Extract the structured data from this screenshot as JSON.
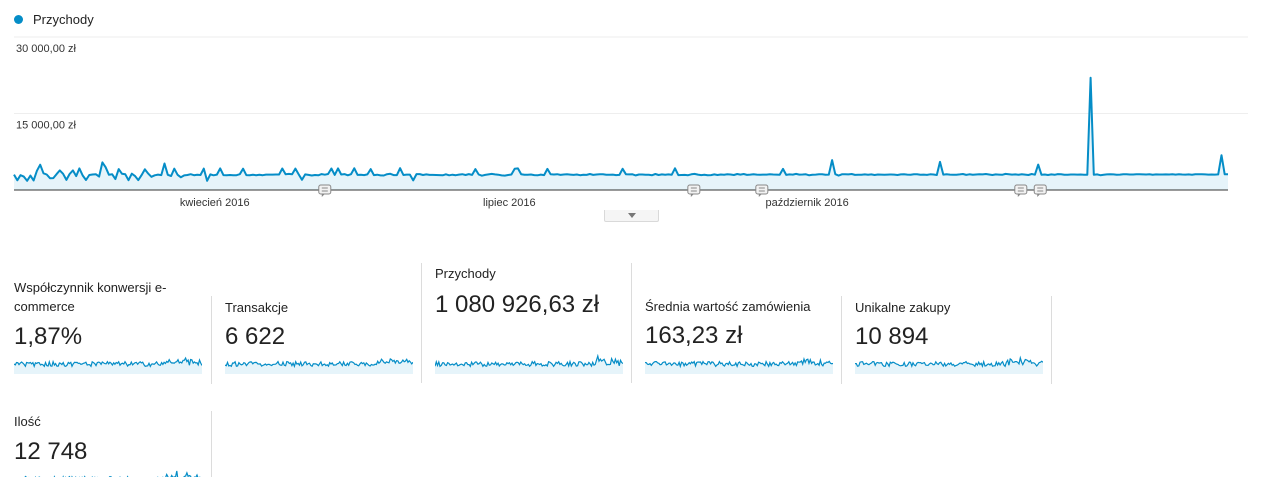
{
  "legend": {
    "label": "Przychody",
    "color": "#058dc7"
  },
  "chart_data": {
    "type": "area",
    "series": [
      {
        "name": "Przychody",
        "color": "#058dc7"
      }
    ],
    "y_ticks": [
      "30 000,00 zł",
      "15 000,00 zł"
    ],
    "ylim": [
      0,
      30000
    ],
    "x_tick_labels": [
      "kwiecień 2016",
      "lipiec 2016",
      "październik 2016"
    ],
    "x_tick_days": [
      62,
      153,
      245
    ],
    "days": 375,
    "annotation_days": [
      96,
      210,
      231,
      311,
      317
    ],
    "values": [
      3010,
      1902,
      2908,
      2622,
      1812,
      2823,
      1866,
      3766,
      4952,
      3283,
      3031,
      2305,
      2342,
      3099,
      3838,
      3180,
      1975,
      3130,
      3840,
      2719,
      4226,
      2843,
      1964,
      2944,
      3031,
      3102,
      2620,
      5408,
      4466,
      3002,
      3087,
      2140,
      4094,
      3185,
      3079,
      1918,
      3197,
      2731,
      1935,
      2913,
      4058,
      3217,
      2592,
      2878,
      3029,
      2929,
      5187,
      2977,
      2751,
      4180,
      2978,
      2497,
      2869,
      2938,
      3091,
      2905,
      3004,
      2934,
      4195,
      1811,
      3051,
      2889,
      3014,
      4245,
      2916,
      2898,
      2935,
      2904,
      2909,
      3102,
      4170,
      2926,
      2906,
      3003,
      2895,
      3009,
      2905,
      3029,
      3012,
      3024,
      3043,
      3044,
      4211,
      3104,
      3152,
      3082,
      4205,
      3056,
      2006,
      3058,
      2964,
      2837,
      2936,
      2890,
      3123,
      3004,
      3131,
      4209,
      2954,
      4245,
      3047,
      3122,
      2876,
      3101,
      4260,
      2963,
      2977,
      2919,
      3067,
      4089,
      2927,
      3001,
      2859,
      2844,
      3096,
      3181,
      2925,
      2922,
      4277,
      2933,
      3024,
      3014,
      1873,
      3125,
      3117,
      2947,
      3050,
      2960,
      2966,
      2941,
      2931,
      2880,
      3087,
      2881,
      3004,
      2908,
      3021,
      3103,
      2944,
      3109,
      2958,
      4107,
      3033,
      2807,
      2963,
      3053,
      3153,
      3065,
      2998,
      2870,
      2824,
      2949,
      3043,
      4181,
      4243,
      3083,
      2986,
      3001,
      3039,
      2923,
      2882,
      3015,
      2926,
      4129,
      3073,
      3040,
      3101,
      2963,
      3030,
      3084,
      3018,
      2965,
      3049,
      2902,
      3009,
      2956,
      3138,
      2958,
      3043,
      3088,
      3102,
      2991,
      2977,
      3029,
      2912,
      2951,
      4150,
      3092,
      3061,
      3081,
      2865,
      3047,
      3046,
      2995,
      3001,
      2894,
      3144,
      2944,
      3064,
      2981,
      3062,
      2975,
      4247,
      2917,
      2941,
      2967,
      2911,
      3084,
      3154,
      3019,
      2916,
      2987,
      2892,
      2931,
      3052,
      2940,
      3039,
      3009,
      3087,
      3045,
      2934,
      3143,
      3012,
      3128,
      2970,
      3025,
      3107,
      3012,
      2994,
      3010,
      3029,
      3076,
      3031,
      3021,
      2980,
      4130,
      2961,
      3063,
      3025,
      3150,
      3017,
      3041,
      3078,
      2880,
      2977,
      3026,
      3088,
      3099,
      3004,
      3020,
      5860,
      3107,
      2830,
      3071,
      3082,
      3068,
      3134,
      2967,
      3001,
      2989,
      3066,
      2990,
      3066,
      2933,
      3043,
      3014,
      2989,
      3027,
      3048,
      3018,
      2946,
      3050,
      3078,
      3025,
      2979,
      3084,
      3073,
      2972,
      3025,
      2963,
      3083,
      3034,
      2941,
      5510,
      3017,
      3094,
      3028,
      3003,
      2999,
      3064,
      3130,
      2968,
      3070,
      2988,
      3041,
      3096,
      3056,
      3131,
      3030,
      2943,
      3053,
      3023,
      2981,
      3154,
      3095,
      3014,
      3057,
      2997,
      3102,
      3026,
      2932,
      3140,
      3009,
      4980,
      2988,
      3033,
      2932,
      3060,
      2975,
      3118,
      3069,
      2985,
      3009,
      3041,
      3045,
      3019,
      3037,
      3009,
      3009,
      22000,
      3004,
      3054,
      2901,
      2985,
      3051,
      3089,
      3060,
      2993,
      3011,
      3089,
      3077,
      3040,
      3032,
      3081,
      3071,
      3051,
      3034,
      3070,
      3009,
      3064,
      3045,
      3039,
      3052,
      3045,
      3075,
      3023,
      3099,
      3040,
      3023,
      3053,
      2998,
      3095,
      3074,
      3082,
      3068,
      3018,
      3032,
      3016,
      3055,
      6830,
      3076,
      3086
    ]
  },
  "metrics": [
    {
      "label": "Współczynnik konwersji e-commerce",
      "value": "1,87%"
    },
    {
      "label": "Transakcje",
      "value": "6 622"
    },
    {
      "label": "Przychody",
      "value": "1 080 926,63 zł"
    },
    {
      "label": "Średnia wartość zamówienia",
      "value": "163,23 zł"
    },
    {
      "label": "Unikalne zakupy",
      "value": "10 894"
    },
    {
      "label": "Ilość",
      "value": "12 748"
    }
  ]
}
